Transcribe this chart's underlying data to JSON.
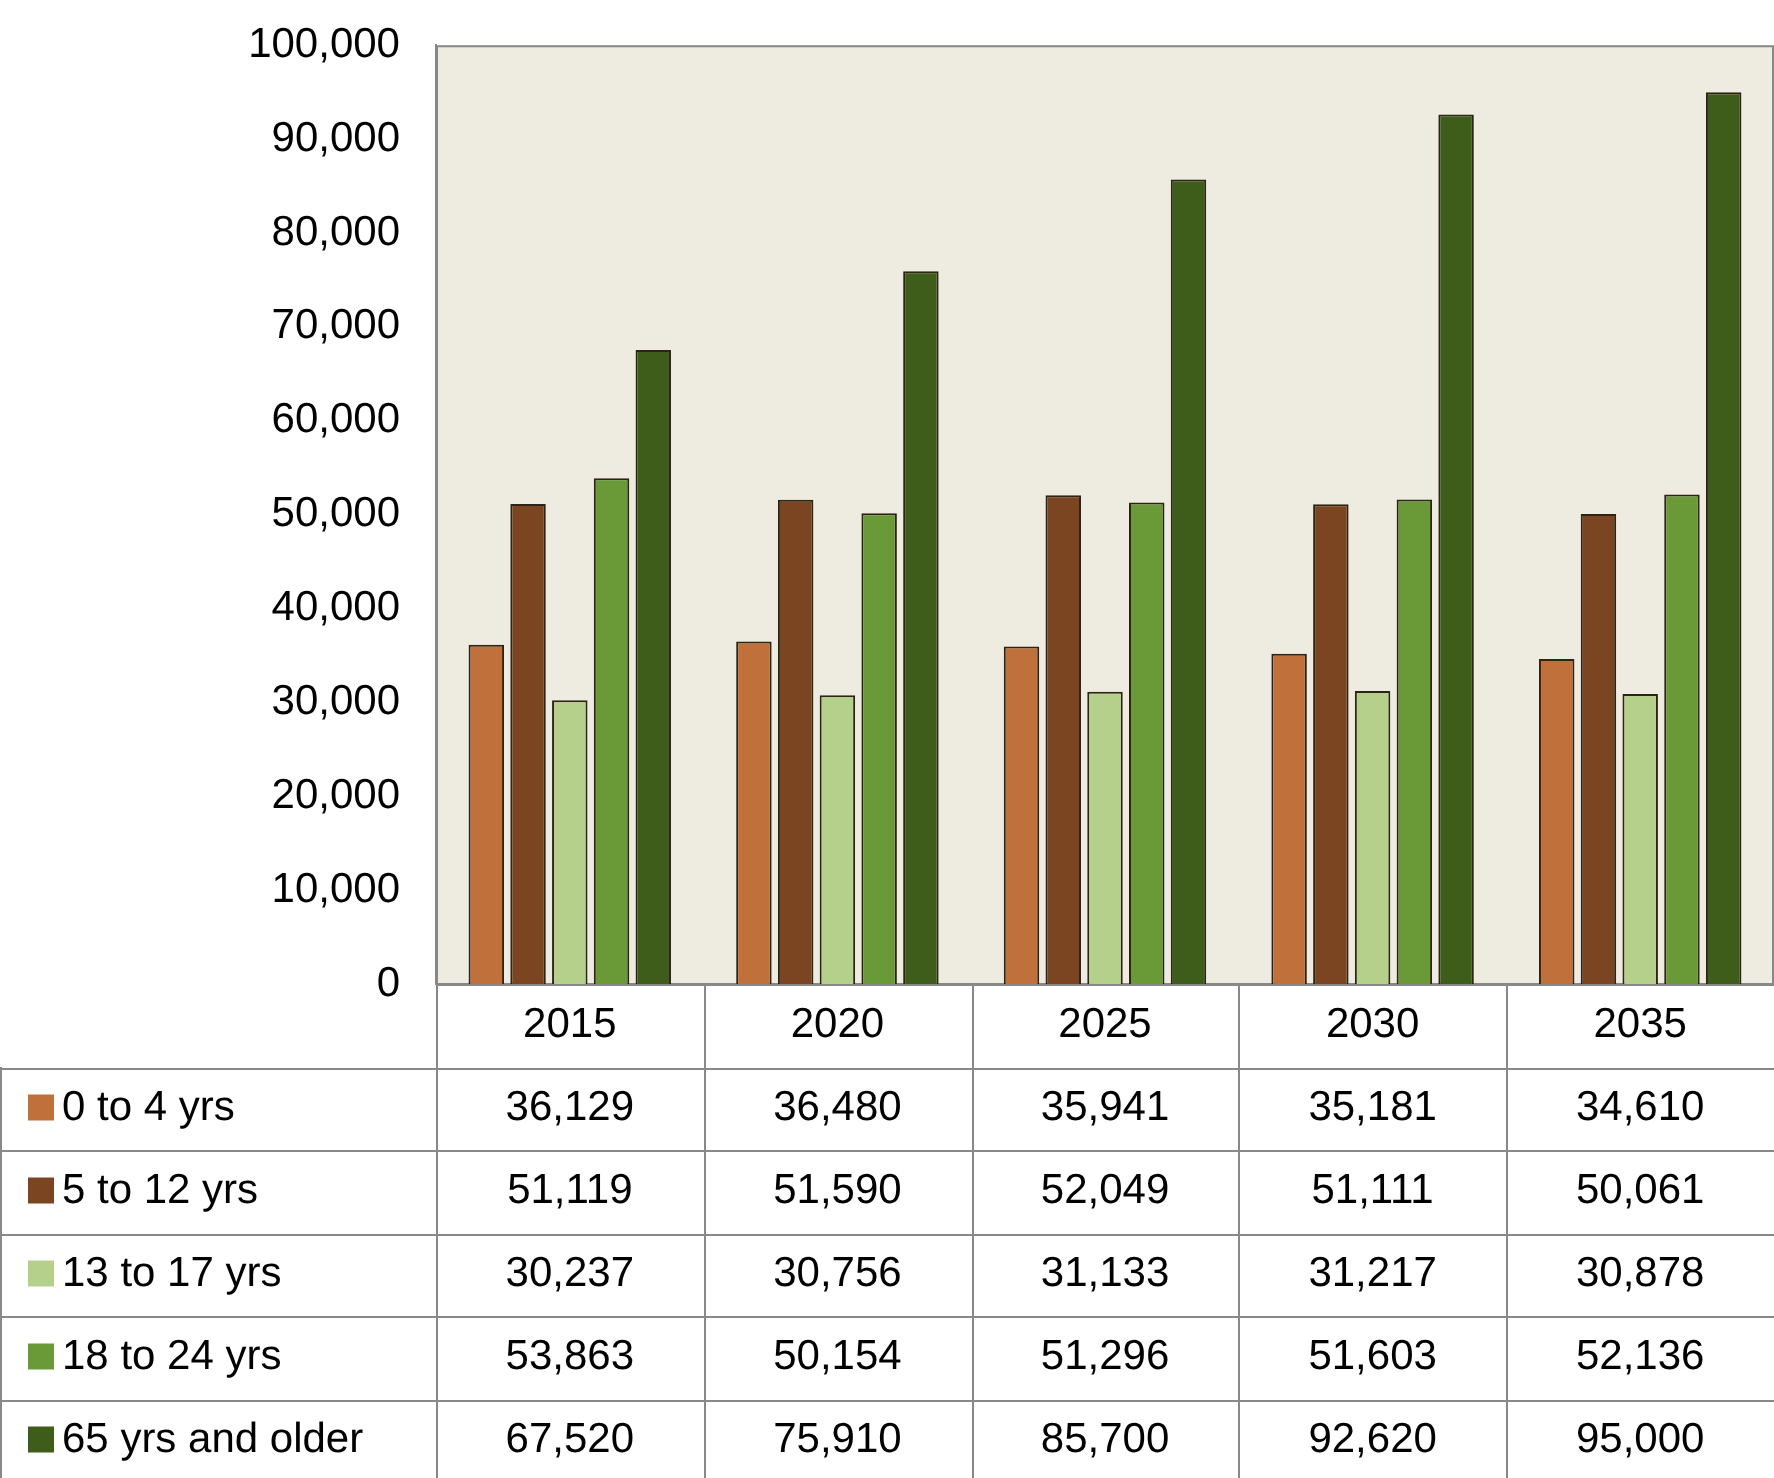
{
  "chart_data": {
    "type": "bar",
    "categories": [
      "2015",
      "2020",
      "2025",
      "2030",
      "2035"
    ],
    "series": [
      {
        "name": "0 to 4 yrs",
        "color": "#c0703a",
        "values": [
          36129,
          36480,
          35941,
          35181,
          34610
        ],
        "value_labels": [
          "36,129",
          "36,480",
          "35,941",
          "35,181",
          "34,610"
        ]
      },
      {
        "name": "5 to 12 yrs",
        "color": "#7a4520",
        "values": [
          51119,
          51590,
          52049,
          51111,
          50061
        ],
        "value_labels": [
          "51,119",
          "51,590",
          "52,049",
          "51,111",
          "50,061"
        ]
      },
      {
        "name": "13 to 17 yrs",
        "color": "#b5d08a",
        "values": [
          30237,
          30756,
          31133,
          31217,
          30878
        ],
        "value_labels": [
          "30,237",
          "30,756",
          "31,133",
          "31,217",
          "30,878"
        ]
      },
      {
        "name": "18 to 24 yrs",
        "color": "#6a9a38",
        "values": [
          53863,
          50154,
          51296,
          51603,
          52136
        ],
        "value_labels": [
          "53,863",
          "50,154",
          "51,296",
          "51,603",
          "52,136"
        ]
      },
      {
        "name": "65 yrs and older",
        "color": "#3e5c1a",
        "values": [
          67520,
          75910,
          85700,
          92620,
          95000
        ],
        "value_labels": [
          "67,520",
          "75,910",
          "85,700",
          "92,620",
          "95,000"
        ]
      }
    ],
    "ylim": [
      0,
      100000
    ],
    "yticks": [
      {
        "value": 0,
        "label": "0"
      },
      {
        "value": 10000,
        "label": "10,000"
      },
      {
        "value": 20000,
        "label": "20,000"
      },
      {
        "value": 30000,
        "label": "30,000"
      },
      {
        "value": 40000,
        "label": "40,000"
      },
      {
        "value": 50000,
        "label": "50,000"
      },
      {
        "value": 60000,
        "label": "60,000"
      },
      {
        "value": 70000,
        "label": "70,000"
      },
      {
        "value": 80000,
        "label": "80,000"
      },
      {
        "value": 90000,
        "label": "90,000"
      },
      {
        "value": 100000,
        "label": "100,000"
      }
    ],
    "grid": false,
    "legend": "bottom"
  }
}
